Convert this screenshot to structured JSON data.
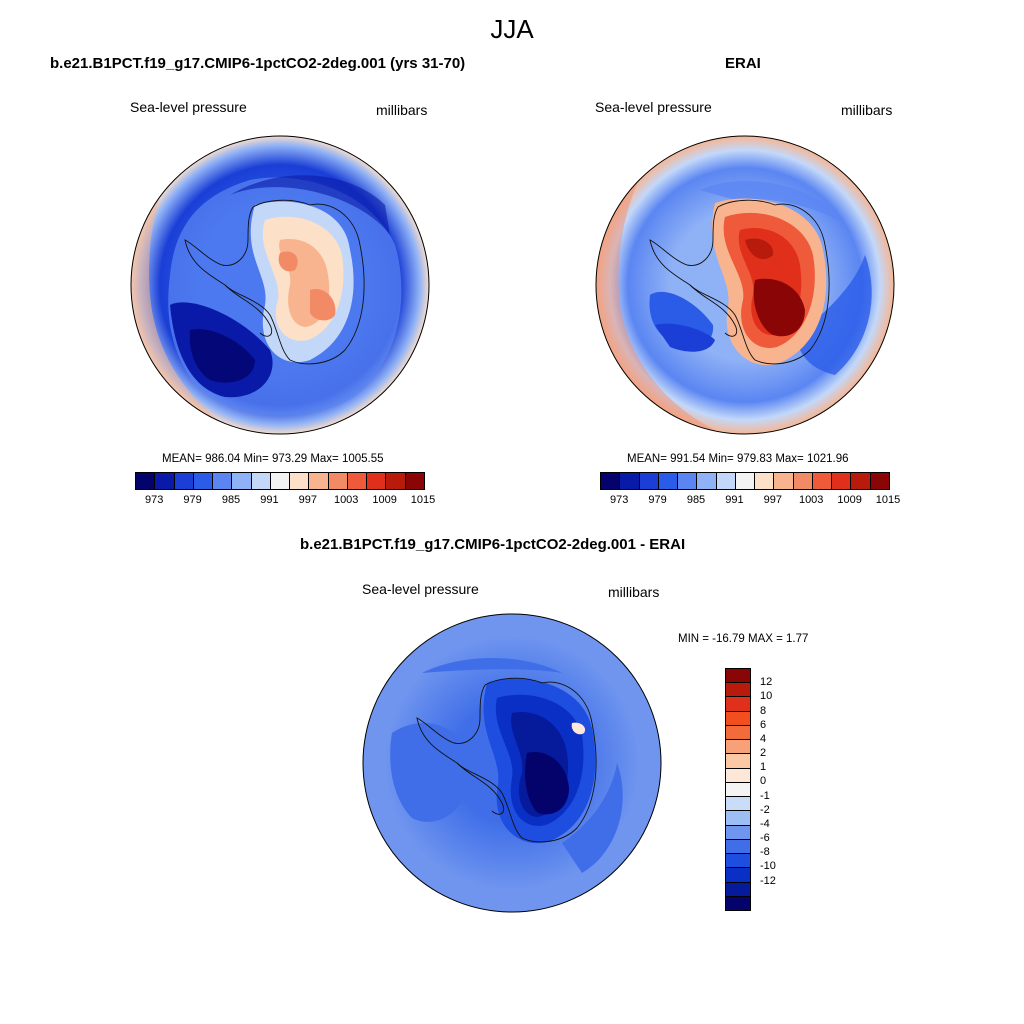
{
  "title": "JJA",
  "panels": [
    {
      "title": "b.e21.B1PCT.f19_g17.CMIP6-1pctCO2-2deg.001 (yrs 31-70)",
      "variable": "Sea-level pressure",
      "units": "millibars",
      "stats": "MEAN= 986.04  Min= 973.29  Max= 1005.55"
    },
    {
      "title": "ERAI",
      "variable": "Sea-level pressure",
      "units": "millibars",
      "stats": "MEAN= 991.54  Min= 979.83  Max= 1021.96"
    },
    {
      "title": "b.e21.B1PCT.f19_g17.CMIP6-1pctCO2-2deg.001 - ERAI",
      "variable": "Sea-level pressure",
      "units": "millibars",
      "stats": "MIN = -16.79 MAX =   1.77"
    }
  ],
  "abs_colorbar": {
    "labels": [
      "973",
      "979",
      "985",
      "991",
      "997",
      "1003",
      "1009",
      "1015"
    ],
    "colors": [
      "#03036b",
      "#0a1aa8",
      "#1a3ed6",
      "#2b5ce8",
      "#5b86f2",
      "#8fb1f6",
      "#c3d8f9",
      "#f3f3f3",
      "#fde0c8",
      "#f8b48f",
      "#f38a66",
      "#ee5a3a",
      "#e0301b",
      "#b81b0c",
      "#8a0606"
    ]
  },
  "diff_colorbar": {
    "labels": [
      "12",
      "10",
      "8",
      "6",
      "4",
      "2",
      "1",
      "0",
      "-1",
      "-2",
      "-4",
      "-6",
      "-8",
      "-10",
      "-12"
    ],
    "colors": [
      "#8a0606",
      "#b81b0c",
      "#e0301b",
      "#f24e1e",
      "#f36b3a",
      "#f8a178",
      "#fbc8a6",
      "#fde7d8",
      "#f4f4f4",
      "#c9dcf8",
      "#9dbdf5",
      "#6f95ef",
      "#3f6ee8",
      "#1e4ee0",
      "#0a2fc4",
      "#061a9c",
      "#03036b"
    ]
  },
  "chart_data": {
    "type": "heatmap",
    "season": "JJA",
    "field": "Sea-level pressure",
    "units": "millibars",
    "maps": [
      {
        "name": "b.e21.B1PCT.f19_g17.CMIP6-1pctCO2-2deg.001 (yrs 31-70)",
        "mean": 986.04,
        "min": 973.29,
        "max": 1005.55
      },
      {
        "name": "ERAI",
        "mean": 991.54,
        "min": 979.83,
        "max": 1021.96
      },
      {
        "name": "b.e21.B1PCT.f19_g17.CMIP6-1pctCO2-2deg.001 - ERAI",
        "min": -16.79,
        "max": 1.77
      }
    ],
    "abs_levels": [
      973,
      979,
      985,
      991,
      997,
      1003,
      1009,
      1015
    ],
    "diff_levels": [
      -12,
      -10,
      -8,
      -6,
      -4,
      -2,
      -1,
      0,
      1,
      2,
      4,
      6,
      8,
      10,
      12
    ]
  }
}
